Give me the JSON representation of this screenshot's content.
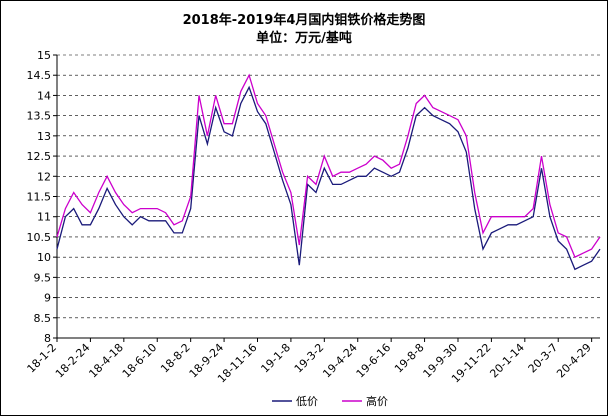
{
  "chart_data": {
    "type": "line",
    "title": "2018年-2019年4月国内钼铁价格走势图",
    "subtitle": "单位：万元/基吨",
    "categories": [
      "18-1-2",
      null,
      null,
      null,
      "18-2-24",
      null,
      null,
      null,
      "18-4-18",
      null,
      null,
      null,
      "18-6-10",
      null,
      null,
      null,
      "18-8-2",
      null,
      null,
      null,
      "18-9-24",
      null,
      null,
      null,
      "18-11-16",
      null,
      null,
      null,
      "19-1-8",
      null,
      null,
      null,
      "19-3-2",
      null,
      null,
      null,
      "19-4-24",
      null,
      null,
      null,
      "19-6-16",
      null,
      null,
      null,
      "19-8-8",
      null,
      null,
      null,
      "19-9-30",
      null,
      null,
      null,
      "19-11-22",
      null,
      null,
      null,
      "20-1-14",
      null,
      null,
      null,
      "20-3-7",
      null,
      null,
      null,
      "20-4-29",
      null
    ],
    "series": [
      {
        "name": "低价",
        "color": "#1a1a7a",
        "values": [
          10.2,
          11.0,
          11.2,
          10.8,
          10.8,
          11.2,
          11.7,
          11.3,
          11.0,
          10.8,
          11.0,
          10.9,
          10.9,
          10.9,
          10.6,
          10.6,
          11.2,
          13.5,
          12.8,
          13.7,
          13.1,
          13.0,
          13.8,
          14.2,
          13.6,
          13.3,
          12.6,
          11.9,
          11.3,
          9.8,
          11.8,
          11.6,
          12.2,
          11.8,
          11.8,
          11.9,
          12.0,
          12.0,
          12.2,
          12.1,
          12.0,
          12.1,
          12.7,
          13.5,
          13.7,
          13.5,
          13.4,
          13.3,
          13.1,
          12.6,
          11.2,
          10.2,
          10.6,
          10.7,
          10.8,
          10.8,
          10.9,
          11.0,
          12.2,
          11.0,
          10.4,
          10.2,
          9.7,
          9.8,
          9.9,
          10.2
        ]
      },
      {
        "name": "高价",
        "color": "#cc00cc",
        "values": [
          10.5,
          11.2,
          11.6,
          11.3,
          11.1,
          11.6,
          12.0,
          11.6,
          11.3,
          11.1,
          11.2,
          11.2,
          11.2,
          11.1,
          10.8,
          10.9,
          11.5,
          14.0,
          13.0,
          14.0,
          13.3,
          13.3,
          14.1,
          14.5,
          13.8,
          13.5,
          12.8,
          12.1,
          11.6,
          10.3,
          12.0,
          11.8,
          12.5,
          12.0,
          12.1,
          12.1,
          12.2,
          12.3,
          12.5,
          12.4,
          12.2,
          12.3,
          13.0,
          13.8,
          14.0,
          13.7,
          13.6,
          13.5,
          13.4,
          13.0,
          11.6,
          10.6,
          11.0,
          11.0,
          11.0,
          11.0,
          11.0,
          11.2,
          12.5,
          11.3,
          10.6,
          10.5,
          10.0,
          10.1,
          10.2,
          10.5
        ]
      }
    ],
    "ylim": [
      8,
      15
    ],
    "yticks": [
      8,
      8.5,
      9,
      9.5,
      10,
      10.5,
      11,
      11.5,
      12,
      12.5,
      13,
      13.5,
      14,
      14.5,
      15
    ],
    "grid": true,
    "legend": "bottom"
  }
}
